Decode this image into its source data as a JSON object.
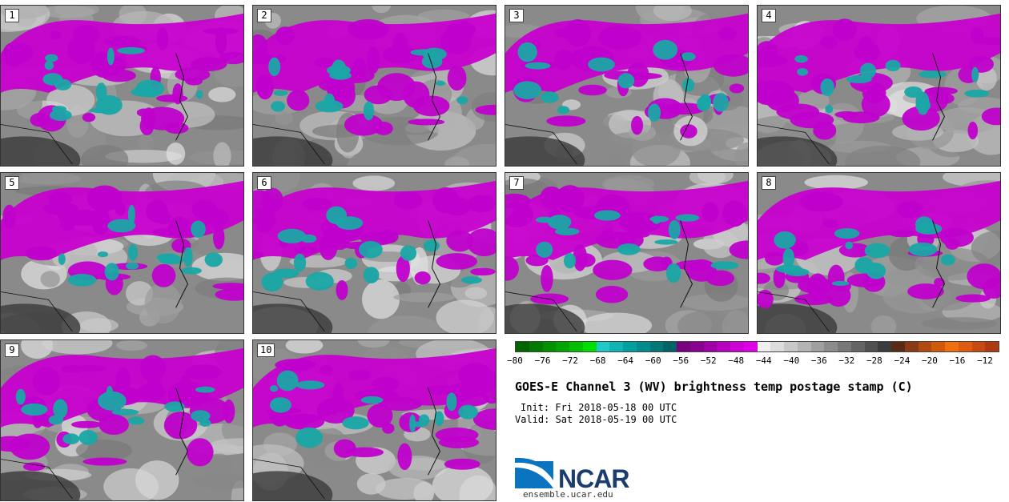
{
  "panels": [
    {
      "label": "1"
    },
    {
      "label": "2"
    },
    {
      "label": "3"
    },
    {
      "label": "4"
    },
    {
      "label": "5"
    },
    {
      "label": "6"
    },
    {
      "label": "7"
    },
    {
      "label": "8"
    },
    {
      "label": "9"
    },
    {
      "label": "10"
    }
  ],
  "colorbar": {
    "colors": [
      "#006400",
      "#007a00",
      "#009000",
      "#00a600",
      "#00c000",
      "#00e000",
      "#20c8c8",
      "#10b4b4",
      "#00a0a0",
      "#008c8c",
      "#007878",
      "#006464",
      "#7a0080",
      "#8a0090",
      "#a000a8",
      "#b800c0",
      "#cc00d4",
      "#e000e6",
      "#f0f0f0",
      "#dcdcdc",
      "#c8c8c8",
      "#b4b4b4",
      "#a0a0a0",
      "#8c8c8c",
      "#787878",
      "#646464",
      "#505050",
      "#3c3c3c",
      "#5a2a14",
      "#8a3a14",
      "#b04a10",
      "#d05a0a",
      "#f07010",
      "#e05a10",
      "#c84a10",
      "#b03a10"
    ],
    "ticks": [
      "−80",
      "−76",
      "−72",
      "−68",
      "−64",
      "−60",
      "−56",
      "−52",
      "−48",
      "−44",
      "−40",
      "−36",
      "−32",
      "−28",
      "−24",
      "−20",
      "−16",
      "−12"
    ]
  },
  "title": "GOES-E Channel 3 (WV) brightness temp postage stamp (C)",
  "init": "Init: Fri 2018-05-18 00 UTC",
  "valid": "Valid: Sat 2018-05-19 00 UTC",
  "logo": {
    "text": "NCAR",
    "url": "ensemble.ucar.edu"
  }
}
